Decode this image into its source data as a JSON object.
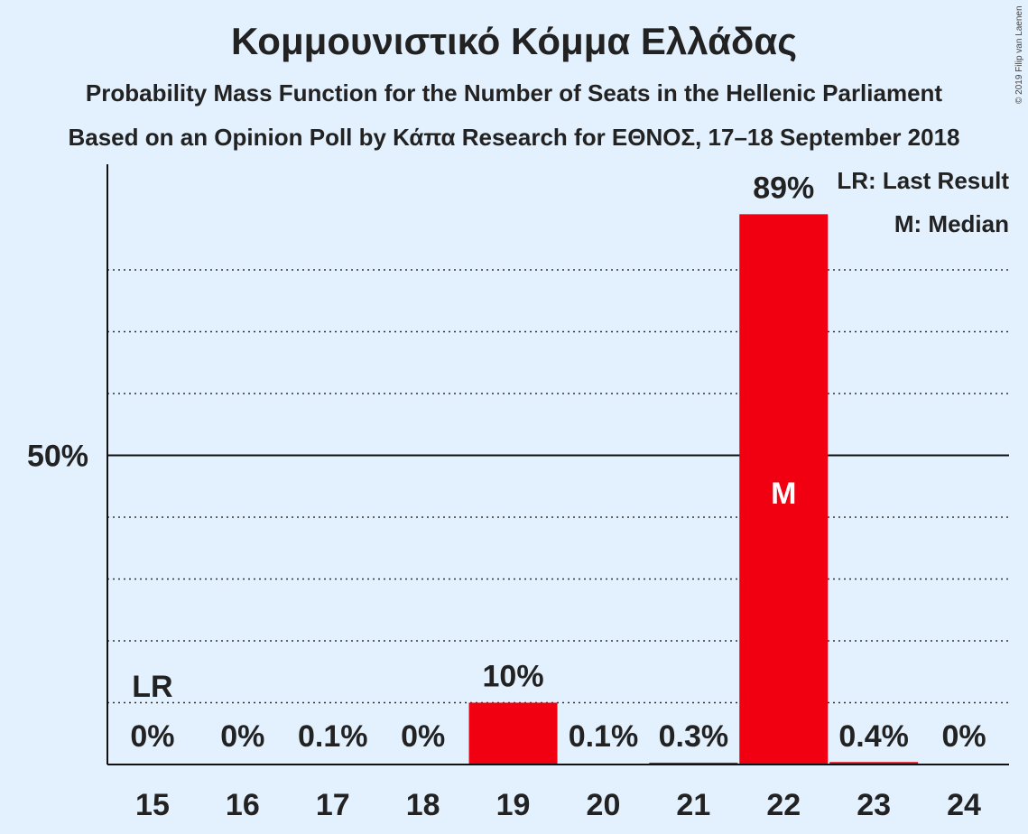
{
  "title": "Κομμουνιστικό Κόμμα Ελλάδας",
  "subtitle1": "Probability Mass Function for the Number of Seats in the Hellenic Parliament",
  "subtitle2": "Based on an Opinion Poll by Κάπα Research for ΕΘΝΟΣ, 17–18 September 2018",
  "copyright": "© 2019 Filip van Laenen",
  "legend": {
    "lr": "LR: Last Result",
    "m": "M: Median"
  },
  "colors": {
    "bar": "#f00010",
    "background": "#e3f0fd"
  },
  "chart_data": {
    "type": "bar",
    "categories": [
      "15",
      "16",
      "17",
      "18",
      "19",
      "20",
      "21",
      "22",
      "23",
      "24"
    ],
    "values": [
      0,
      0,
      0.1,
      0,
      10,
      0.1,
      0.3,
      89,
      0.4,
      0
    ],
    "value_labels": [
      "0%",
      "0%",
      "0.1%",
      "0%",
      "10%",
      "0.1%",
      "0.3%",
      "89%",
      "0.4%",
      "0%"
    ],
    "ylim": [
      0,
      100
    ],
    "yticks": [
      {
        "value": 50,
        "label": "50%"
      }
    ],
    "gridlines": [
      10,
      20,
      30,
      40,
      60,
      70,
      80
    ],
    "last_result": {
      "category": "15",
      "label": "LR"
    },
    "median": {
      "category": "22",
      "label": "M"
    }
  }
}
